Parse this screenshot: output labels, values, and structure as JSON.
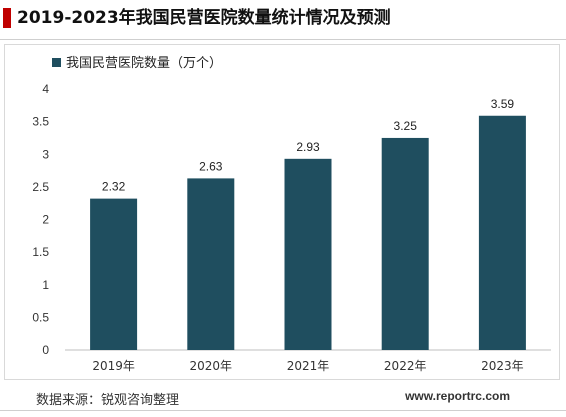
{
  "title": "2019-2023年我国民营医院数量统计情况及预测",
  "source": "数据来源：锐观咨询整理",
  "website": "www.reportrc.com",
  "colors": {
    "bar": "#1f4e5f",
    "accent": "#c00000"
  },
  "chart_data": {
    "type": "bar",
    "categories": [
      "2019年",
      "2020年",
      "2021年",
      "2022年",
      "2023年"
    ],
    "series": [
      {
        "name": "我国民营医院数量（万个）",
        "values": [
          2.32,
          2.63,
          2.93,
          3.25,
          3.59
        ]
      }
    ],
    "data_labels": [
      "2.32",
      "2.63",
      "2.93",
      "3.25",
      "3.59"
    ],
    "yticks": [
      "0",
      "0.5",
      "1",
      "1.5",
      "2",
      "2.5",
      "3",
      "3.5",
      "4"
    ],
    "ylim": [
      0,
      4
    ],
    "grid": false,
    "legend": "top-left"
  }
}
